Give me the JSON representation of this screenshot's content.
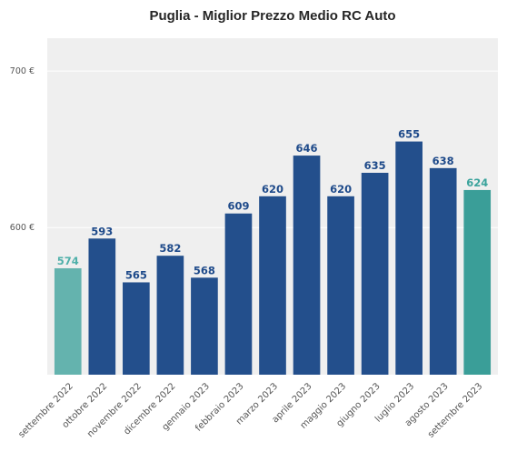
{
  "chart_data": {
    "type": "bar",
    "title": "Puglia - Miglior Prezzo Medio RC Auto",
    "xlabel": "",
    "ylabel": "",
    "ylim": [
      506,
      721
    ],
    "yticks": [
      600,
      700
    ],
    "ytick_labels": [
      "600 €",
      "700 €"
    ],
    "grid": true,
    "categories": [
      "settembre 2022",
      "ottobre 2022",
      "novembre 2022",
      "dicembre 2022",
      "gennaio 2023",
      "febbraio 2023",
      "marzo 2023",
      "aprile 2023",
      "maggio 2023",
      "giugno 2023",
      "luglio 2023",
      "agosto 2023",
      "settembre 2023"
    ],
    "values": [
      574,
      593,
      565,
      582,
      568,
      609,
      620,
      646,
      620,
      635,
      655,
      638,
      624
    ],
    "bar_colors": [
      "#64b3ae",
      "#234f8c",
      "#234f8c",
      "#234f8c",
      "#234f8c",
      "#234f8c",
      "#234f8c",
      "#234f8c",
      "#234f8c",
      "#234f8c",
      "#234f8c",
      "#234f8c",
      "#3a9e98"
    ],
    "label_colors": [
      "#4fb0aa",
      "#1e4a8a",
      "#1e4a8a",
      "#1e4a8a",
      "#1e4a8a",
      "#1e4a8a",
      "#1e4a8a",
      "#1e4a8a",
      "#1e4a8a",
      "#1e4a8a",
      "#1e4a8a",
      "#1e4a8a",
      "#3aa39c"
    ],
    "background_color": "#efefef",
    "grid_color": "#ffffff"
  }
}
